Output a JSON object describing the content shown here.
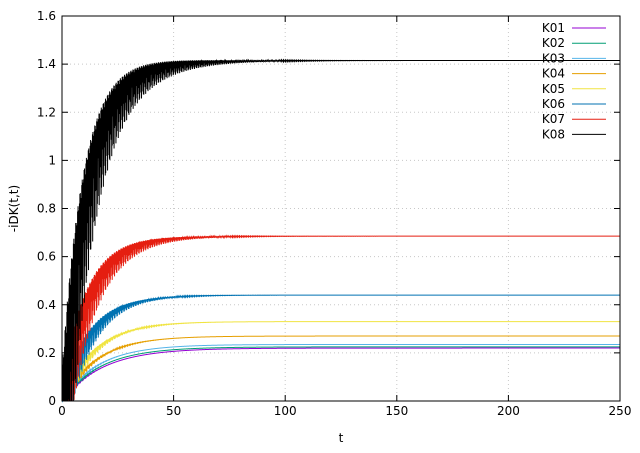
{
  "chart_data": {
    "type": "line",
    "title": "",
    "xlabel": "t",
    "ylabel": "-iDK(t,t)",
    "xlim": [
      0,
      250
    ],
    "ylim": [
      0,
      1.6
    ],
    "x_ticks": [
      0,
      50,
      100,
      150,
      200,
      250
    ],
    "x_tick_labels": [
      "0",
      "50",
      "100",
      "150",
      "200",
      "250"
    ],
    "y_ticks": [
      0,
      0.2,
      0.4,
      0.6,
      0.8,
      1,
      1.2,
      1.4,
      1.6
    ],
    "y_tick_labels": [
      "0",
      "0.2",
      "0.4",
      "0.6",
      "0.8",
      "1",
      "1.2",
      "1.4",
      "1.6"
    ],
    "grid": true,
    "legend_position": "top-right",
    "series": [
      {
        "name": "K01",
        "color": "#9400d3",
        "steady_state": 0.22,
        "rise_time": 18,
        "osc_amplitude": 0.01,
        "osc_period": 2.5,
        "osc_decay": 6,
        "x": [
          0,
          10,
          20,
          30,
          40,
          50,
          75,
          100,
          150,
          200,
          250
        ],
        "values": [
          0.0,
          0.1,
          0.16,
          0.19,
          0.21,
          0.215,
          0.22,
          0.22,
          0.22,
          0.22,
          0.22
        ]
      },
      {
        "name": "K02",
        "color": "#009e73",
        "steady_state": 0.225,
        "rise_time": 17,
        "osc_amplitude": 0.015,
        "osc_period": 2.4,
        "osc_decay": 6,
        "x": [
          0,
          10,
          20,
          30,
          40,
          50,
          75,
          100,
          150,
          200,
          250
        ],
        "values": [
          0.0,
          0.11,
          0.17,
          0.2,
          0.215,
          0.22,
          0.225,
          0.225,
          0.225,
          0.225,
          0.225
        ]
      },
      {
        "name": "K03",
        "color": "#56b4e9",
        "steady_state": 0.235,
        "rise_time": 16,
        "osc_amplitude": 0.02,
        "osc_period": 2.4,
        "osc_decay": 7,
        "x": [
          0,
          10,
          20,
          30,
          40,
          50,
          75,
          100,
          150,
          200,
          250
        ],
        "values": [
          0.0,
          0.12,
          0.18,
          0.21,
          0.225,
          0.23,
          0.235,
          0.235,
          0.235,
          0.235,
          0.235
        ]
      },
      {
        "name": "K04",
        "color": "#e69f00",
        "steady_state": 0.27,
        "rise_time": 15,
        "osc_amplitude": 0.06,
        "osc_period": 2.3,
        "osc_decay": 9,
        "x": [
          0,
          10,
          20,
          30,
          40,
          50,
          75,
          100,
          150,
          200,
          250
        ],
        "values": [
          0.0,
          0.14,
          0.21,
          0.245,
          0.26,
          0.265,
          0.27,
          0.27,
          0.27,
          0.27,
          0.27
        ]
      },
      {
        "name": "K05",
        "color": "#f0e442",
        "steady_state": 0.33,
        "rise_time": 14,
        "osc_amplitude": 0.1,
        "osc_period": 2.2,
        "osc_decay": 11,
        "x": [
          0,
          10,
          20,
          30,
          40,
          50,
          75,
          100,
          150,
          200,
          250
        ],
        "values": [
          0.0,
          0.18,
          0.26,
          0.3,
          0.32,
          0.325,
          0.33,
          0.33,
          0.33,
          0.33,
          0.33
        ]
      },
      {
        "name": "K06",
        "color": "#0072b2",
        "steady_state": 0.44,
        "rise_time": 12,
        "osc_amplitude": 0.22,
        "osc_period": 2.1,
        "osc_decay": 13,
        "x": [
          0,
          10,
          20,
          30,
          40,
          50,
          75,
          100,
          150,
          200,
          250
        ],
        "values": [
          0.0,
          0.26,
          0.37,
          0.41,
          0.43,
          0.435,
          0.44,
          0.44,
          0.44,
          0.44,
          0.44
        ]
      },
      {
        "name": "K07",
        "color": "#e51e10",
        "steady_state": 0.685,
        "rise_time": 11,
        "osc_amplitude": 0.38,
        "osc_period": 2.0,
        "osc_decay": 16,
        "x": [
          0,
          10,
          20,
          30,
          40,
          50,
          75,
          100,
          150,
          200,
          250
        ],
        "values": [
          0.0,
          0.45,
          0.59,
          0.645,
          0.67,
          0.68,
          0.685,
          0.685,
          0.685,
          0.685,
          0.685
        ]
      },
      {
        "name": "K08",
        "color": "#000000",
        "steady_state": 1.415,
        "rise_time": 10,
        "osc_amplitude": 0.85,
        "osc_period": 1.9,
        "osc_decay": 18,
        "x": [
          0,
          10,
          20,
          30,
          40,
          50,
          75,
          100,
          150,
          200,
          250
        ],
        "values": [
          0.0,
          0.95,
          1.22,
          1.33,
          1.38,
          1.4,
          1.415,
          1.415,
          1.415,
          1.415,
          1.415
        ]
      }
    ]
  }
}
